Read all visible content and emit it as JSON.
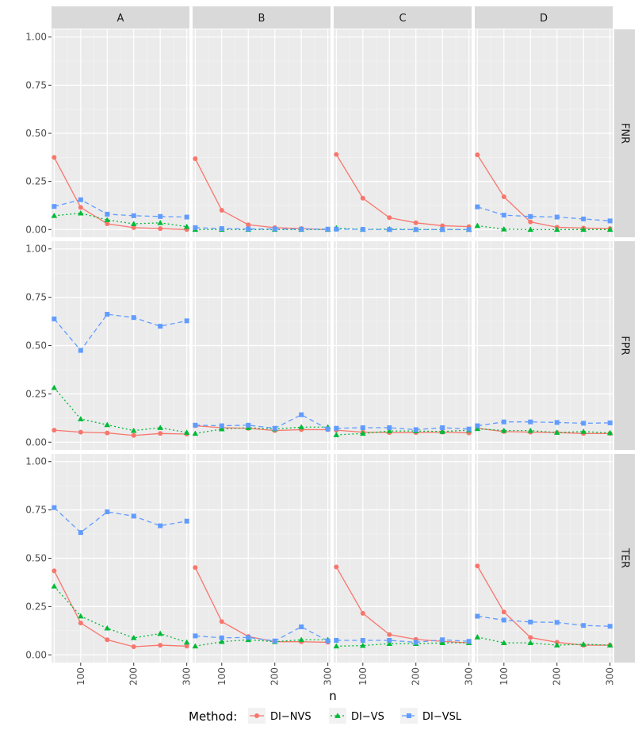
{
  "chart_data": {
    "type": "line",
    "facet_layout": "grid",
    "columns": [
      "A",
      "B",
      "C",
      "D"
    ],
    "rows": [
      "FNR",
      "FPR",
      "TER"
    ],
    "x": [
      50,
      100,
      150,
      200,
      250,
      300
    ],
    "xlabel": "n",
    "xticks": [
      100,
      200,
      300
    ],
    "xlim": [
      45,
      305
    ],
    "ylim": [
      -0.04,
      1.04
    ],
    "yticks": [
      0.0,
      0.25,
      0.5,
      0.75,
      1.0
    ],
    "ytick_labels": [
      "0.00",
      "0.25",
      "0.50",
      "0.75",
      "1.00"
    ],
    "legend": {
      "title": "Method:",
      "position": "bottom",
      "entries": [
        {
          "name": "DI−NVS",
          "color": "#F8766D",
          "shape": "circle",
          "dash": "solid"
        },
        {
          "name": "DI−VS",
          "color": "#00BA38",
          "shape": "triangle",
          "dash": "dotted"
        },
        {
          "name": "DI−VSL",
          "color": "#619CFF",
          "shape": "square",
          "dash": "dashed"
        }
      ]
    },
    "series": {
      "FNR": {
        "A": {
          "DI-NVS": [
            0.375,
            0.115,
            0.03,
            0.01,
            0.005,
            0.0
          ],
          "DI-VS": [
            0.072,
            0.085,
            0.05,
            0.03,
            0.035,
            0.015
          ],
          "DI-VSL": [
            0.12,
            0.155,
            0.08,
            0.072,
            0.068,
            0.065
          ]
        },
        "B": {
          "DI-NVS": [
            0.368,
            0.1,
            0.025,
            0.01,
            0.005,
            0.0
          ],
          "DI-VS": [
            0.0,
            0.0,
            0.0,
            0.0,
            0.0,
            0.0
          ],
          "DI-VSL": [
            0.01,
            0.005,
            0.003,
            0.003,
            0.002,
            0.002
          ]
        },
        "C": {
          "DI-NVS": [
            0.39,
            0.163,
            0.062,
            0.035,
            0.02,
            0.015
          ],
          "DI-VS": [
            0.008,
            0.0,
            0.003,
            0.0,
            0.0,
            0.0
          ],
          "DI-VSL": [
            0.002,
            0.001,
            0.0,
            0.0,
            0.0,
            0.0
          ]
        },
        "D": {
          "DI-NVS": [
            0.388,
            0.17,
            0.04,
            0.012,
            0.008,
            0.005
          ],
          "DI-VS": [
            0.02,
            0.002,
            0.0,
            0.0,
            0.0,
            0.0
          ],
          "DI-VSL": [
            0.118,
            0.075,
            0.068,
            0.065,
            0.055,
            0.045
          ]
        }
      },
      "FPR": {
        "A": {
          "DI-NVS": [
            0.062,
            0.052,
            0.048,
            0.035,
            0.045,
            0.042
          ],
          "DI-VS": [
            0.282,
            0.12,
            0.09,
            0.06,
            0.075,
            0.05
          ],
          "DI-VSL": [
            0.638,
            0.475,
            0.662,
            0.645,
            0.6,
            0.628
          ]
        },
        "B": {
          "DI-NVS": [
            0.085,
            0.075,
            0.072,
            0.06,
            0.065,
            0.065
          ],
          "DI-VS": [
            0.045,
            0.068,
            0.075,
            0.068,
            0.078,
            0.078
          ],
          "DI-VSL": [
            0.088,
            0.085,
            0.088,
            0.072,
            0.142,
            0.068
          ]
        },
        "C": {
          "DI-NVS": [
            0.062,
            0.052,
            0.05,
            0.05,
            0.052,
            0.048
          ],
          "DI-VS": [
            0.038,
            0.045,
            0.058,
            0.058,
            0.055,
            0.062
          ],
          "DI-VSL": [
            0.072,
            0.075,
            0.075,
            0.065,
            0.075,
            0.068
          ]
        },
        "D": {
          "DI-NVS": [
            0.072,
            0.055,
            0.052,
            0.05,
            0.045,
            0.045
          ],
          "DI-VS": [
            0.07,
            0.06,
            0.06,
            0.05,
            0.055,
            0.048
          ],
          "DI-VSL": [
            0.085,
            0.105,
            0.105,
            0.102,
            0.098,
            0.1
          ]
        }
      },
      "TER": {
        "A": {
          "DI-NVS": [
            0.435,
            0.165,
            0.078,
            0.042,
            0.05,
            0.045
          ],
          "DI-VS": [
            0.355,
            0.2,
            0.138,
            0.088,
            0.11,
            0.065
          ],
          "DI-VSL": [
            0.762,
            0.633,
            0.74,
            0.718,
            0.668,
            0.692
          ]
        },
        "B": {
          "DI-NVS": [
            0.452,
            0.172,
            0.095,
            0.068,
            0.068,
            0.065
          ],
          "DI-VS": [
            0.045,
            0.068,
            0.078,
            0.068,
            0.078,
            0.078
          ],
          "DI-VSL": [
            0.098,
            0.088,
            0.09,
            0.072,
            0.145,
            0.072
          ]
        },
        "C": {
          "DI-NVS": [
            0.455,
            0.215,
            0.105,
            0.08,
            0.07,
            0.062
          ],
          "DI-VS": [
            0.045,
            0.048,
            0.058,
            0.058,
            0.062,
            0.062
          ],
          "DI-VSL": [
            0.075,
            0.075,
            0.075,
            0.065,
            0.078,
            0.07
          ]
        },
        "D": {
          "DI-NVS": [
            0.46,
            0.222,
            0.09,
            0.065,
            0.05,
            0.05
          ],
          "DI-VS": [
            0.092,
            0.062,
            0.062,
            0.05,
            0.055,
            0.05
          ],
          "DI-VSL": [
            0.2,
            0.18,
            0.17,
            0.168,
            0.152,
            0.148
          ]
        }
      }
    }
  }
}
